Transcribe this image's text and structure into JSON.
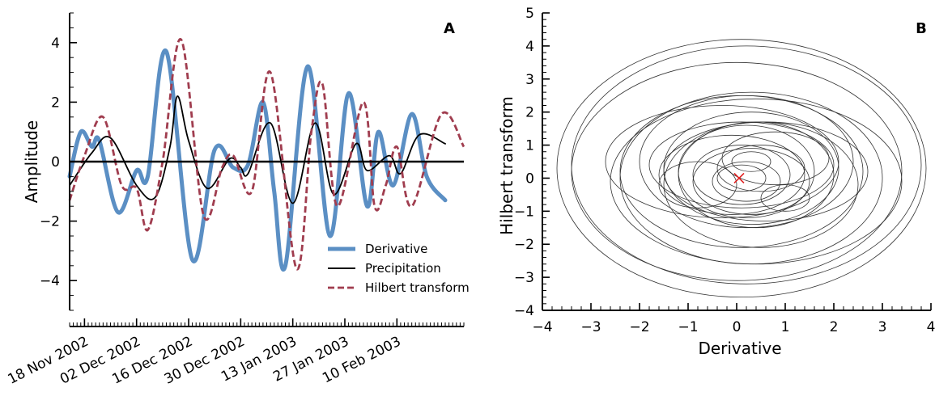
{
  "chart_data": [
    {
      "panel": "A",
      "type": "line",
      "ylabel": "Amplitude",
      "ylim": [
        -5,
        5
      ],
      "xlim": [
        "2002-11-14",
        "2003-02-28"
      ],
      "y_ticks": [
        -4,
        -2,
        0,
        2,
        4
      ],
      "y_tick_labels": [
        "−4",
        "−2",
        "0",
        "2",
        "4"
      ],
      "x_ticks": [
        "2002-11-18",
        "2002-12-02",
        "2002-12-16",
        "2002-12-30",
        "2003-01-13",
        "2003-01-27",
        "2003-02-10"
      ],
      "x_tick_labels": [
        "18 Nov 2002",
        "02 Dec 2002",
        "16 Dec 2002",
        "30 Dec 2002",
        "13 Jan 2003",
        "27 Jan 2003",
        "10 Feb 2003"
      ],
      "zero_line": true,
      "legend_position": "lower-right",
      "series": [
        {
          "name": "Derivative",
          "color": "#5b8fc4",
          "style": "solid-thick",
          "points": [
            [
              "2002-11-14",
              -0.5
            ],
            [
              "2002-11-17",
              1.0
            ],
            [
              "2002-11-20",
              0.5
            ],
            [
              "2002-11-22",
              0.7
            ],
            [
              "2002-11-27",
              -1.7
            ],
            [
              "2002-12-02",
              -0.3
            ],
            [
              "2002-12-05",
              -0.5
            ],
            [
              "2002-12-10",
              3.7
            ],
            [
              "2002-12-17",
              -3.3
            ],
            [
              "2002-12-23",
              0.4
            ],
            [
              "2002-12-28",
              -0.2
            ],
            [
              "2003-01-01",
              -0.1
            ],
            [
              "2003-01-05",
              2.0
            ],
            [
              "2003-01-08",
              -1.0
            ],
            [
              "2003-01-11",
              -3.5
            ],
            [
              "2003-01-17",
              3.2
            ],
            [
              "2003-01-23",
              -2.5
            ],
            [
              "2003-01-28",
              2.3
            ],
            [
              "2003-02-02",
              -1.5
            ],
            [
              "2003-02-05",
              1.0
            ],
            [
              "2003-02-09",
              -0.8
            ],
            [
              "2003-02-14",
              1.6
            ],
            [
              "2003-02-18",
              -0.5
            ],
            [
              "2003-02-23",
              -1.3
            ]
          ]
        },
        {
          "name": "Precipitation",
          "color": "#000000",
          "style": "solid-thin",
          "points": [
            [
              "2002-11-14",
              -0.8
            ],
            [
              "2002-11-20",
              0.3
            ],
            [
              "2002-11-25",
              0.8
            ],
            [
              "2002-12-02",
              -0.8
            ],
            [
              "2002-12-07",
              -1.2
            ],
            [
              "2002-12-11",
              0.5
            ],
            [
              "2002-12-13",
              2.2
            ],
            [
              "2002-12-16",
              0.7
            ],
            [
              "2002-12-21",
              -0.9
            ],
            [
              "2002-12-27",
              0.1
            ],
            [
              "2002-12-30",
              -0.2
            ],
            [
              "2003-01-01",
              -0.4
            ],
            [
              "2003-01-07",
              1.3
            ],
            [
              "2003-01-13",
              -1.4
            ],
            [
              "2003-01-19",
              1.3
            ],
            [
              "2003-01-24",
              -1.1
            ],
            [
              "2003-01-30",
              0.6
            ],
            [
              "2003-02-02",
              -0.3
            ],
            [
              "2003-02-08",
              0.2
            ],
            [
              "2003-02-11",
              -0.4
            ],
            [
              "2003-02-16",
              0.9
            ],
            [
              "2003-02-23",
              0.6
            ]
          ]
        },
        {
          "name": "Hilbert transform",
          "color": "#a03d4f",
          "style": "dashed",
          "points": [
            [
              "2002-11-14",
              -1.3
            ],
            [
              "2002-11-18",
              0.2
            ],
            [
              "2002-11-23",
              1.5
            ],
            [
              "2002-11-28",
              -0.8
            ],
            [
              "2002-12-02",
              -0.9
            ],
            [
              "2002-12-05",
              -2.3
            ],
            [
              "2002-12-09",
              0.0
            ],
            [
              "2002-12-14",
              4.1
            ],
            [
              "2002-12-20",
              -1.8
            ],
            [
              "2002-12-25",
              -0.2
            ],
            [
              "2002-12-28",
              0.2
            ],
            [
              "2003-01-02",
              -1.0
            ],
            [
              "2003-01-07",
              3.0
            ],
            [
              "2003-01-14",
              -3.6
            ],
            [
              "2003-01-18",
              1.0
            ],
            [
              "2003-01-21",
              2.6
            ],
            [
              "2003-01-25",
              -1.5
            ],
            [
              "2003-02-01",
              2.0
            ],
            [
              "2003-02-04",
              -1.5
            ],
            [
              "2003-02-07",
              -0.8
            ],
            [
              "2003-02-10",
              0.5
            ],
            [
              "2003-02-14",
              -1.5
            ],
            [
              "2003-02-22",
              1.6
            ],
            [
              "2003-02-28",
              0.5
            ]
          ]
        }
      ]
    },
    {
      "panel": "B",
      "type": "line",
      "xlabel": "Derivative",
      "ylabel": "Hilbert transform",
      "xlim": [
        -4,
        4
      ],
      "ylim": [
        -4,
        5
      ],
      "x_ticks": [
        -4,
        -3,
        -2,
        -1,
        0,
        1,
        2,
        3,
        4
      ],
      "x_tick_labels": [
        "−4",
        "−3",
        "−2",
        "−1",
        "0",
        "1",
        "2",
        "3",
        "4"
      ],
      "y_ticks": [
        -4,
        -3,
        -2,
        -1,
        0,
        1,
        2,
        3,
        4,
        5
      ],
      "y_tick_labels": [
        "−4",
        "−3",
        "−2",
        "−1",
        "0",
        "1",
        "2",
        "3",
        "4",
        "5"
      ],
      "line_color": "#333333",
      "marker": {
        "x": 0.05,
        "y": 0.0,
        "symbol": "x",
        "color": "#e02020"
      },
      "loops": [
        {
          "cx": 0.1,
          "cy": 0.3,
          "rx": 3.8,
          "ry": 3.9
        },
        {
          "cx": 0.2,
          "cy": 0.4,
          "rx": 3.6,
          "ry": 3.6
        },
        {
          "cx": 0.0,
          "cy": 0.2,
          "rx": 3.4,
          "ry": 3.3
        },
        {
          "cx": 0.4,
          "cy": -0.1,
          "rx": 3.0,
          "ry": 2.5
        },
        {
          "cx": 0.3,
          "cy": 0.0,
          "rx": 2.7,
          "ry": 2.6
        },
        {
          "cx": 0.1,
          "cy": 0.2,
          "rx": 2.5,
          "ry": 2.3
        },
        {
          "cx": -0.3,
          "cy": 0.5,
          "rx": 2.4,
          "ry": 1.7
        },
        {
          "cx": 0.2,
          "cy": 0.5,
          "rx": 2.2,
          "ry": 2.0
        },
        {
          "cx": 0.5,
          "cy": -0.2,
          "rx": 2.0,
          "ry": 1.9
        },
        {
          "cx": 0.6,
          "cy": 0.2,
          "rx": 2.1,
          "ry": 1.5
        },
        {
          "cx": 0.3,
          "cy": 0.3,
          "rx": 1.8,
          "ry": 1.7
        },
        {
          "cx": 0.1,
          "cy": 0.4,
          "rx": 1.9,
          "ry": 1.3
        },
        {
          "cx": 0.4,
          "cy": 0.1,
          "rx": 1.6,
          "ry": 1.6
        },
        {
          "cx": -0.1,
          "cy": 0.1,
          "rx": 1.5,
          "ry": 1.2
        },
        {
          "cx": 0.2,
          "cy": 0.2,
          "rx": 1.4,
          "ry": 1.4
        },
        {
          "cx": 0.3,
          "cy": -0.1,
          "rx": 1.2,
          "ry": 1.0
        },
        {
          "cx": 0.1,
          "cy": 0.1,
          "rx": 1.0,
          "ry": 0.9
        },
        {
          "cx": 0.5,
          "cy": 0.3,
          "rx": 0.9,
          "ry": 0.7
        },
        {
          "cx": 0.2,
          "cy": -0.1,
          "rx": 0.7,
          "ry": 0.6
        },
        {
          "cx": 0.1,
          "cy": 0.0,
          "rx": 0.5,
          "ry": 0.4
        },
        {
          "cx": 0.3,
          "cy": 0.5,
          "rx": 0.4,
          "ry": 0.3
        },
        {
          "cx": 1.0,
          "cy": -0.6,
          "rx": 0.5,
          "ry": 0.4
        },
        {
          "cx": -0.8,
          "cy": -0.2,
          "rx": 0.8,
          "ry": 0.7
        },
        {
          "cx": 0.8,
          "cy": 0.6,
          "rx": 1.1,
          "ry": 0.8
        }
      ]
    }
  ]
}
